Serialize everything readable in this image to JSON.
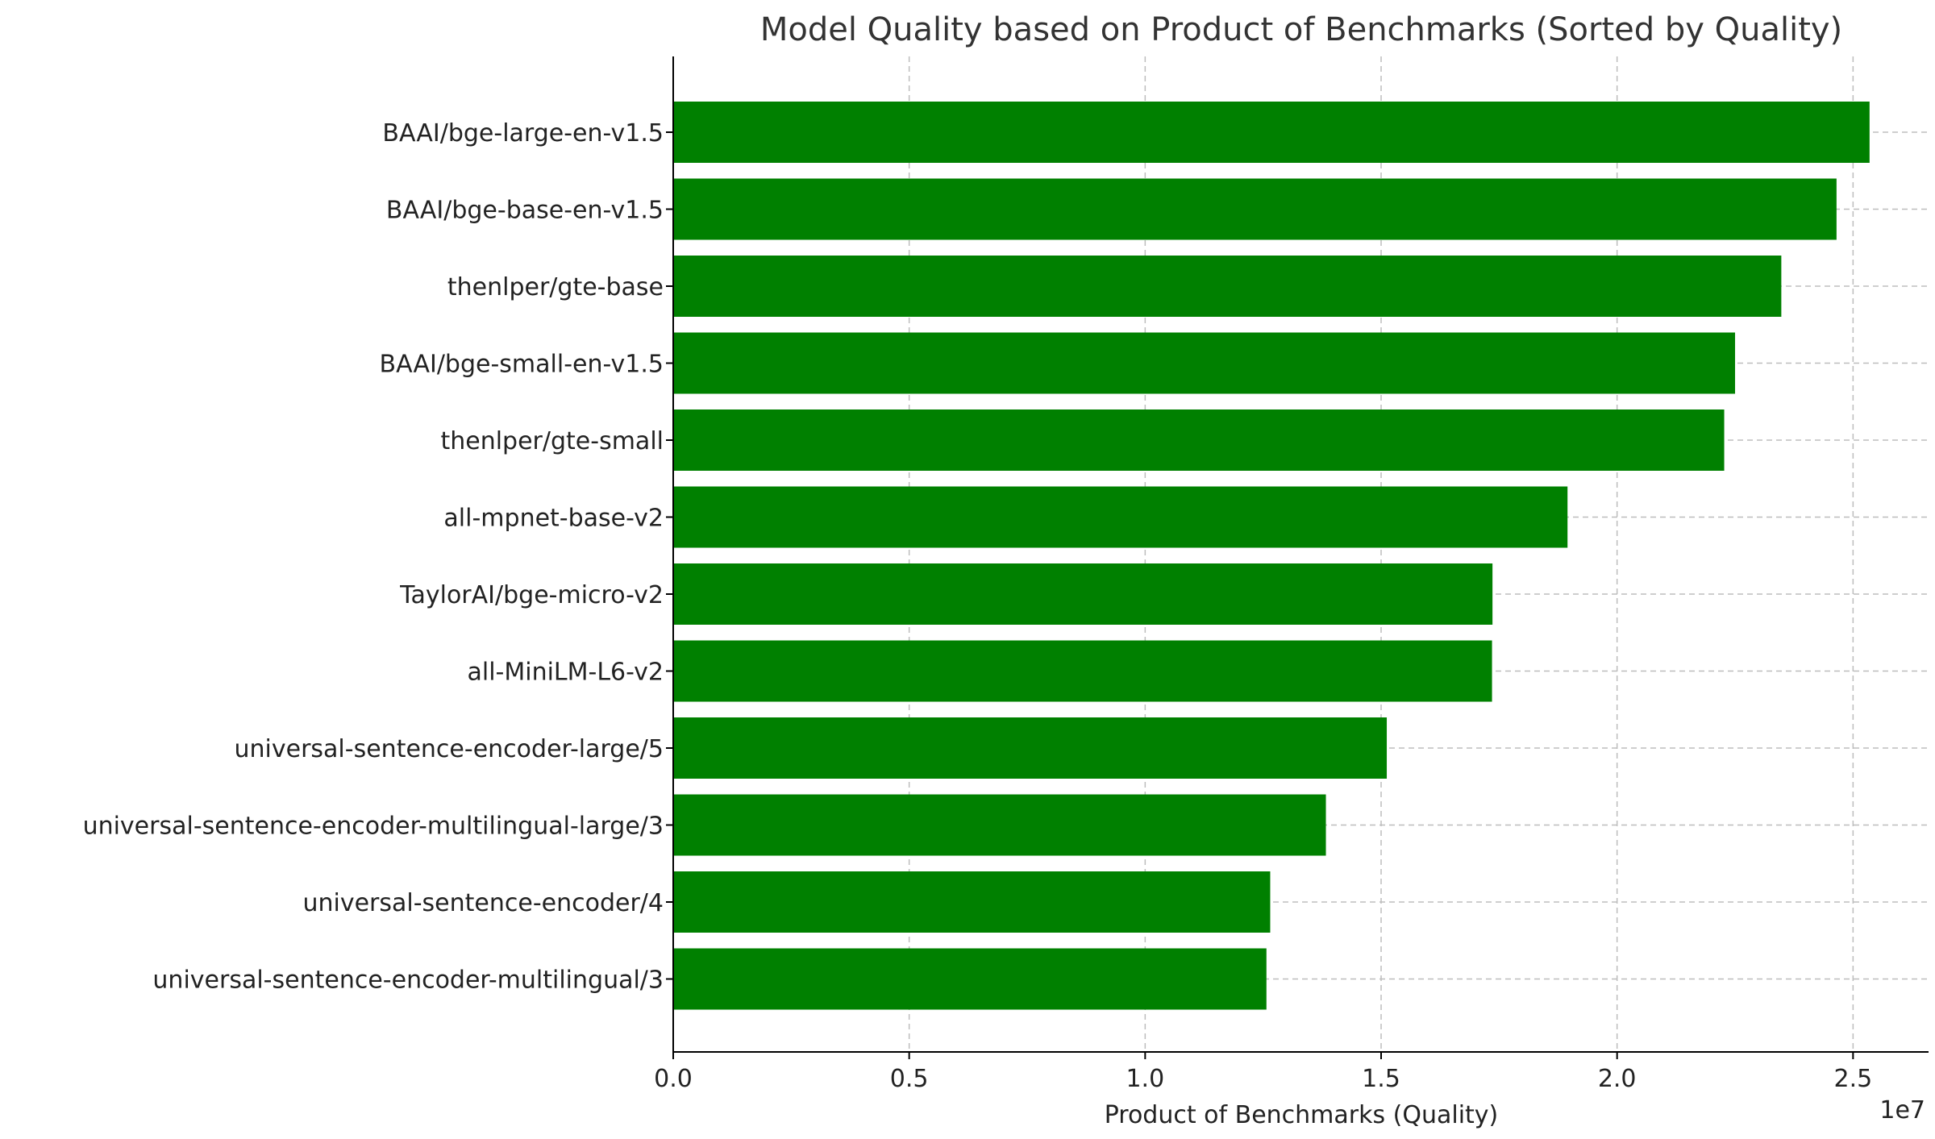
{
  "chart_data": {
    "type": "bar",
    "orientation": "horizontal",
    "title": "Model Quality based on Product of Benchmarks (Sorted by Quality)",
    "xlabel": "Product of Benchmarks (Quality)",
    "ylabel": "",
    "x_scale_label": "1e7",
    "xlim": [
      0,
      26600000
    ],
    "xticks": [
      0,
      5000000,
      10000000,
      15000000,
      20000000,
      25000000
    ],
    "xtick_labels": [
      "0.0",
      "0.5",
      "1.0",
      "1.5",
      "2.0",
      "2.5"
    ],
    "grid": true,
    "bar_color": "#008000",
    "categories": [
      "BAAI/bge-large-en-v1.5",
      "BAAI/bge-base-en-v1.5",
      "thenlper/gte-base",
      "BAAI/bge-small-en-v1.5",
      "thenlper/gte-small",
      "all-mpnet-base-v2",
      "TaylorAI/bge-micro-v2",
      "all-MiniLM-L6-v2",
      "universal-sentence-encoder-large/5",
      "universal-sentence-encoder-multilingual-large/3",
      "universal-sentence-encoder/4",
      "universal-sentence-encoder-multilingual/3"
    ],
    "values": [
      25350000,
      24650000,
      23480000,
      22500000,
      22270000,
      18950000,
      17360000,
      17350000,
      15120000,
      13830000,
      12650000,
      12570000
    ]
  }
}
